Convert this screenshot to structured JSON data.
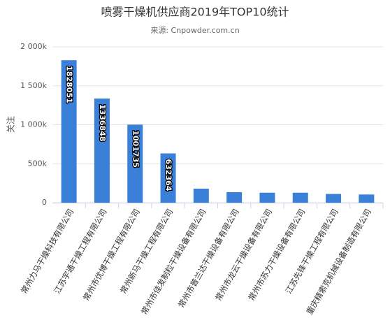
{
  "chart_data": {
    "type": "bar",
    "title": "喷雾干燥机供应商2019年TOP10统计",
    "subtitle": "来源: Cnpowder.com.cn",
    "y_label": "关注",
    "categories": [
      "常州力马干燥科技有限公司",
      "江苏宇通干燥工程有限公司",
      "常州市优博干燥工程有限公司",
      "常州新马干燥工程有限公司",
      "常州市佳发制粒干燥设备有限公司",
      "常州市普兰达干燥设备有限公司",
      "常州市龙云干燥设备有限公司",
      "常州市苏力干燥设备有限公司",
      "江苏先锋干燥工程有限公司",
      "重庆精索克机械设备制造有限公司"
    ],
    "values": [
      1828051,
      1336848,
      1001735,
      632364,
      180000,
      135000,
      128000,
      128000,
      112000,
      105000
    ],
    "value_labels": [
      "1828051",
      "1336848",
      "1001735",
      "632364",
      null,
      null,
      null,
      null,
      null,
      null
    ],
    "color": "#3a80d8",
    "ylim": [
      0,
      2000000
    ],
    "yticks": [
      0,
      {
        "value": 500000,
        "label": "500k"
      },
      {
        "value": 1000000,
        "label": "1 000k"
      },
      {
        "value": 1500000,
        "label": "1 500k"
      },
      {
        "value": 2000000,
        "label": "2 000k"
      }
    ],
    "grid": true
  }
}
